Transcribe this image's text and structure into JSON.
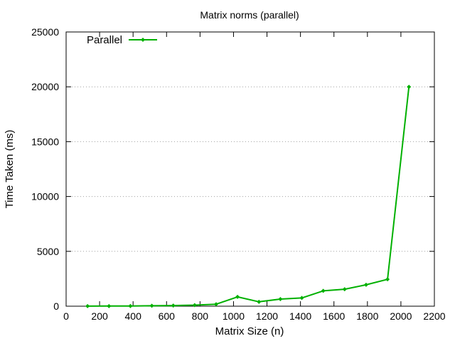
{
  "chart_data": {
    "type": "line",
    "title": "Matrix norms (parallel)",
    "xlabel": "Matrix Size (n)",
    "ylabel": "Time Taken (ms)",
    "xlim": [
      0,
      2200
    ],
    "ylim": [
      0,
      25000
    ],
    "xticks": [
      0,
      200,
      400,
      600,
      800,
      1000,
      1200,
      1400,
      1600,
      1800,
      2000,
      2200
    ],
    "yticks": [
      0,
      5000,
      10000,
      15000,
      20000,
      25000
    ],
    "grid": "horizontal-dotted",
    "legend_position": "top-left",
    "series": [
      {
        "name": "Parallel",
        "color": "#00b000",
        "x": [
          128,
          256,
          384,
          512,
          640,
          768,
          896,
          1024,
          1152,
          1280,
          1408,
          1536,
          1664,
          1792,
          1920,
          2048
        ],
        "y": [
          5,
          10,
          20,
          40,
          60,
          100,
          180,
          850,
          400,
          650,
          750,
          1400,
          1550,
          1950,
          2450,
          20000
        ]
      }
    ]
  }
}
